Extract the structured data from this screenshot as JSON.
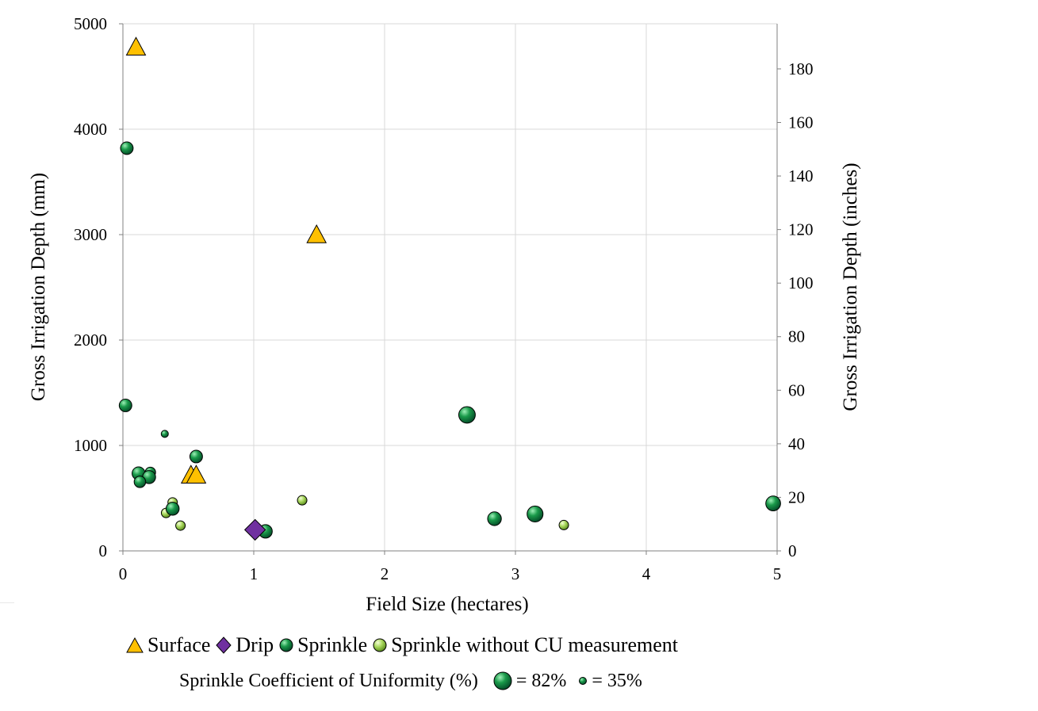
{
  "chart_data": {
    "type": "scatter",
    "xlabel": "Field Size (hectares)",
    "ylabel": "Gross Irrigation Depth (mm)",
    "y2label": "Gross Irrigation Depth (inches)",
    "xlim": [
      0,
      5
    ],
    "ylim": [
      0,
      5000
    ],
    "y2lim": [
      0,
      196.85
    ],
    "x_ticks": [
      "0",
      "1",
      "2",
      "3",
      "4",
      "5"
    ],
    "y_ticks": [
      "0",
      "1000",
      "2000",
      "3000",
      "4000",
      "5000"
    ],
    "y2_ticks": [
      "0",
      "20",
      "40",
      "60",
      "80",
      "100",
      "120",
      "140",
      "160",
      "180"
    ],
    "grid": true,
    "legend_position": "bottom",
    "colors": {
      "surface": "#ffc000",
      "drip": "#7030a0",
      "sprinkle": "#00b050",
      "sprinkle_no_cu": "#92d050"
    },
    "series": [
      {
        "name": "Surface",
        "marker": "triangle",
        "points": [
          {
            "x": 0.1,
            "y": 4780
          },
          {
            "x": 1.48,
            "y": 3000
          },
          {
            "x": 0.52,
            "y": 720
          },
          {
            "x": 0.56,
            "y": 720
          }
        ]
      },
      {
        "name": "Drip",
        "marker": "diamond",
        "points": [
          {
            "x": 1.01,
            "y": 200
          }
        ]
      },
      {
        "name": "Sprinkle",
        "marker": "bubble",
        "points": [
          {
            "x": 0.03,
            "y": 3820,
            "cu": 60
          },
          {
            "x": 0.02,
            "y": 1380,
            "cu": 60
          },
          {
            "x": 0.32,
            "y": 1110,
            "cu": 35
          },
          {
            "x": 0.56,
            "y": 895,
            "cu": 60
          },
          {
            "x": 0.12,
            "y": 735,
            "cu": 62
          },
          {
            "x": 0.21,
            "y": 745,
            "cu": 50
          },
          {
            "x": 0.2,
            "y": 700,
            "cu": 62
          },
          {
            "x": 0.13,
            "y": 655,
            "cu": 55
          },
          {
            "x": 0.38,
            "y": 400,
            "cu": 62
          },
          {
            "x": 1.09,
            "y": 185,
            "cu": 64
          },
          {
            "x": 2.63,
            "y": 1290,
            "cu": 78
          },
          {
            "x": 2.84,
            "y": 305,
            "cu": 65
          },
          {
            "x": 3.15,
            "y": 350,
            "cu": 75
          },
          {
            "x": 4.97,
            "y": 450,
            "cu": 70
          }
        ]
      },
      {
        "name": "Sprinkle without CU measurement",
        "marker": "bubble",
        "points": [
          {
            "x": 0.38,
            "y": 460
          },
          {
            "x": 0.33,
            "y": 360
          },
          {
            "x": 0.44,
            "y": 240
          },
          {
            "x": 1.37,
            "y": 480
          },
          {
            "x": 3.37,
            "y": 245
          }
        ]
      }
    ],
    "size_legend": {
      "label": "Sprinkle Coefficient of Uniformity (%)",
      "items": [
        {
          "cu": 82,
          "text": "= 82%"
        },
        {
          "cu": 35,
          "text": "= 35%"
        }
      ]
    }
  }
}
